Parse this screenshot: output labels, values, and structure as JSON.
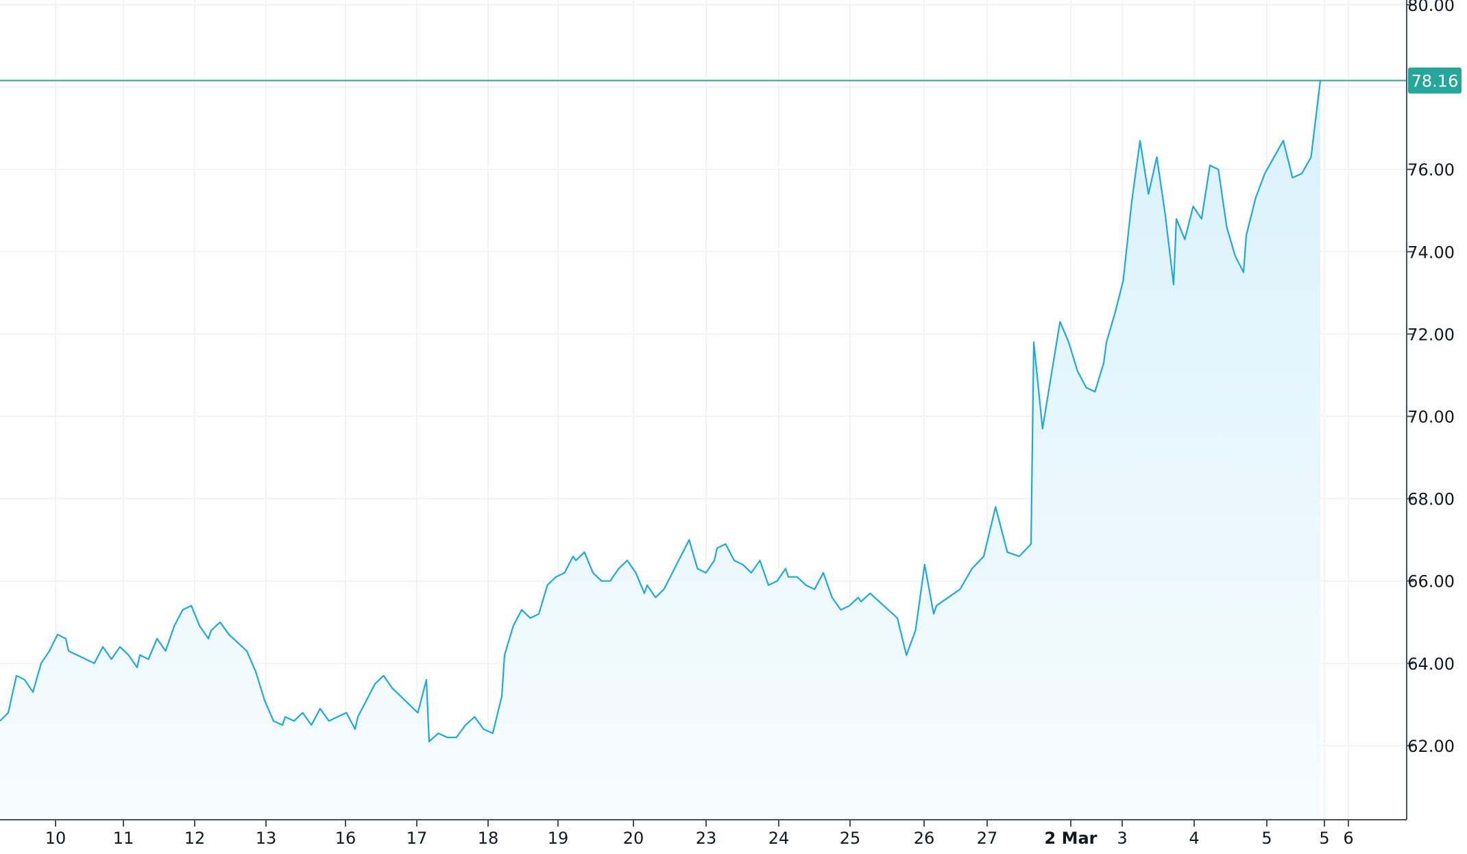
{
  "colors": {
    "line": "#1ea7e1",
    "area_top": "#d9f1fb",
    "area_bottom": "#f7fcff",
    "grid": "#f0f3fa",
    "axis": "#4a4f58",
    "last_price": "#26a69a",
    "text": "#131722"
  },
  "chart_data": {
    "type": "area",
    "title": "",
    "xlabel": "",
    "ylabel": "",
    "ylim": [
      60.2,
      80.0
    ],
    "grid": true,
    "y_ticks": [
      "80.00",
      "76.00",
      "74.00",
      "72.00",
      "70.00",
      "68.00",
      "66.00",
      "64.00",
      "62.00"
    ],
    "x_ticks": [
      {
        "label": "10",
        "bold": false
      },
      {
        "label": "11",
        "bold": false
      },
      {
        "label": "12",
        "bold": false
      },
      {
        "label": "13",
        "bold": false
      },
      {
        "label": "16",
        "bold": false
      },
      {
        "label": "17",
        "bold": false
      },
      {
        "label": "18",
        "bold": false
      },
      {
        "label": "19",
        "bold": false
      },
      {
        "label": "20",
        "bold": false
      },
      {
        "label": "23",
        "bold": false
      },
      {
        "label": "24",
        "bold": false
      },
      {
        "label": "25",
        "bold": false
      },
      {
        "label": "26",
        "bold": false
      },
      {
        "label": "27",
        "bold": false
      },
      {
        "label": "2 Mar",
        "bold": true
      },
      {
        "label": "3",
        "bold": false
      },
      {
        "label": "4",
        "bold": false
      },
      {
        "label": "5",
        "bold": false
      },
      {
        "label": "5",
        "bold": false
      },
      {
        "label": "6",
        "bold": false
      }
    ],
    "last_price": 78.16,
    "last_price_label": "78.16",
    "sessions": [
      [
        62.6,
        62.8,
        63.7,
        63.6,
        63.3,
        64.0,
        64.3,
        64.7,
        64.6
      ],
      [
        64.3,
        64.2,
        64.1,
        64.0,
        64.4,
        64.1,
        64.4,
        64.2,
        63.9
      ],
      [
        64.2,
        64.1,
        64.6,
        64.3,
        64.9,
        65.3,
        65.4,
        64.9,
        64.6
      ],
      [
        64.8,
        65.0,
        64.7,
        64.5,
        64.3,
        63.8,
        63.1,
        62.6,
        62.5
      ],
      [
        62.7,
        62.6,
        62.8,
        62.5,
        62.9,
        62.6,
        62.7,
        62.8,
        62.4
      ],
      [
        62.7,
        63.1,
        63.5,
        63.7,
        63.4,
        63.2,
        63.0,
        62.8,
        63.6
      ],
      [
        62.1,
        62.3,
        62.2,
        62.2,
        62.5,
        62.7,
        62.4,
        62.3,
        63.2
      ],
      [
        64.2,
        64.9,
        65.3,
        65.1,
        65.2,
        65.9,
        66.1,
        66.2,
        66.6
      ],
      [
        66.5,
        66.7,
        66.2,
        66.0,
        66.0,
        66.3,
        66.5,
        66.2,
        65.7
      ],
      [
        65.9,
        65.6,
        65.8,
        66.2,
        66.6,
        67.0,
        66.3,
        66.2,
        66.5
      ],
      [
        66.8,
        66.9,
        66.5,
        66.4,
        66.2,
        66.5,
        65.9,
        66.0,
        66.3
      ],
      [
        66.1,
        66.1,
        65.9,
        65.8,
        66.2,
        65.6,
        65.3,
        65.4,
        65.6
      ],
      [
        65.5,
        65.7,
        65.5,
        65.3,
        65.1,
        64.2,
        64.8,
        66.4,
        65.2
      ],
      [
        65.4,
        65.6,
        65.8,
        66.3,
        66.6,
        67.8,
        66.7,
        66.6,
        66.9
      ],
      [
        71.8,
        69.7,
        71.0,
        72.3,
        71.8,
        71.1,
        70.7,
        70.6,
        71.3
      ],
      [
        71.8,
        72.5,
        73.3,
        75.2,
        76.7,
        75.4,
        76.3,
        74.9,
        73.2
      ],
      [
        74.8,
        74.3,
        75.1,
        74.8,
        76.1,
        76.0,
        74.6,
        73.9,
        73.5
      ],
      [
        74.4,
        75.3,
        75.9,
        76.3,
        76.7,
        75.8,
        75.9,
        76.3,
        78.16
      ]
    ]
  }
}
